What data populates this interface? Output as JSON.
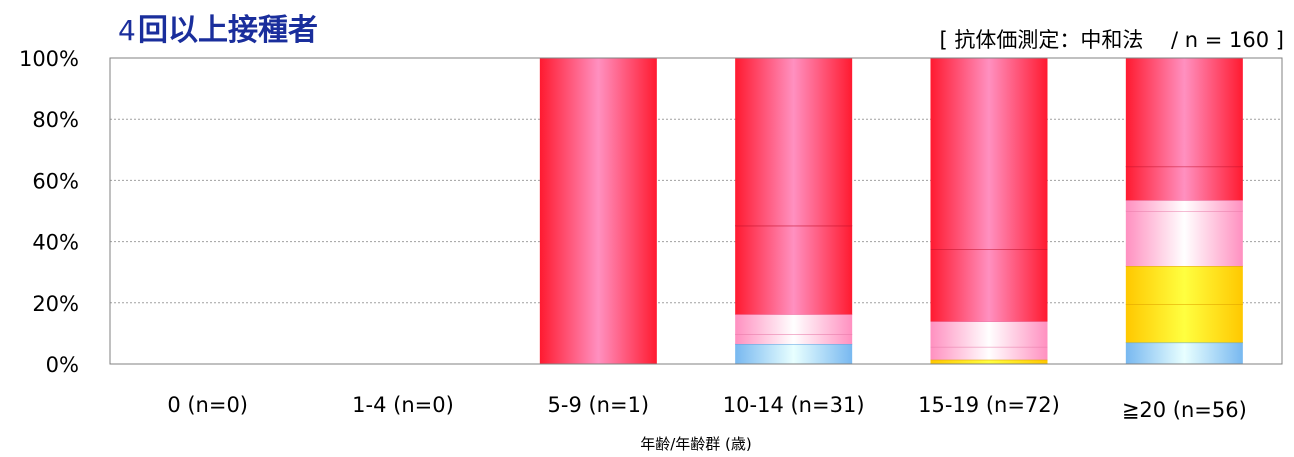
{
  "chart_data": {
    "type": "bar",
    "stacked": true,
    "title_number": "4",
    "title_text": "回以上接種者",
    "subtitle": "[ 抗体価測定：中和法　 / n = 160 ]",
    "xlabel": "年齢/年齢群 (歳)",
    "ylabel": "",
    "ylim": [
      0,
      100
    ],
    "yticks": [
      "0%",
      "20%",
      "40%",
      "60%",
      "80%",
      "100%"
    ],
    "grid": true,
    "categories": [
      "0 (n=0)",
      "1-4 (n=0)",
      "5-9 (n=1)",
      "10-14 (n=31)",
      "15-19 (n=72)",
      "≧20 (n=56)"
    ],
    "series": [
      {
        "color": "#86c8f5",
        "values": [
          0,
          0,
          0,
          6.5,
          0,
          7
        ]
      },
      {
        "color": "#ffd700",
        "values": [
          0,
          0,
          0,
          0,
          1.4,
          12.5
        ]
      },
      {
        "color": "#ffd700",
        "values": [
          0,
          0,
          0,
          0,
          0,
          12.5
        ]
      },
      {
        "color": "#ffb3d1",
        "values": [
          0,
          0,
          0,
          3.2,
          4.2,
          18
        ]
      },
      {
        "color": "#ffb3d1",
        "values": [
          0,
          0,
          0,
          6.5,
          8.3,
          3.5
        ]
      },
      {
        "color": "#f0304a",
        "values": [
          0,
          0,
          0,
          29,
          23.6,
          11
        ]
      },
      {
        "color": "#f0304a",
        "values": [
          0,
          0,
          100,
          54.8,
          62.5,
          35.5
        ]
      }
    ]
  }
}
